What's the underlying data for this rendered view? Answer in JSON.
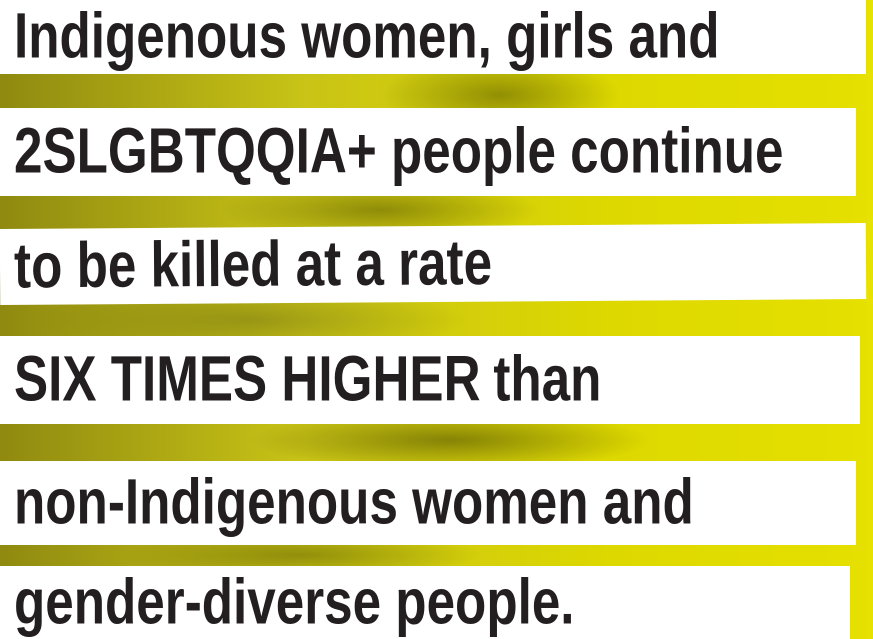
{
  "lines": [
    "Indigenous women, girls and",
    "2SLGBTQQIA+ people continue",
    "to be killed at a rate",
    {
      "highlight": "SIX TIMES HIGHER",
      "rest": "than"
    },
    "non-Indigenous women and",
    "gender-diverse people."
  ]
}
